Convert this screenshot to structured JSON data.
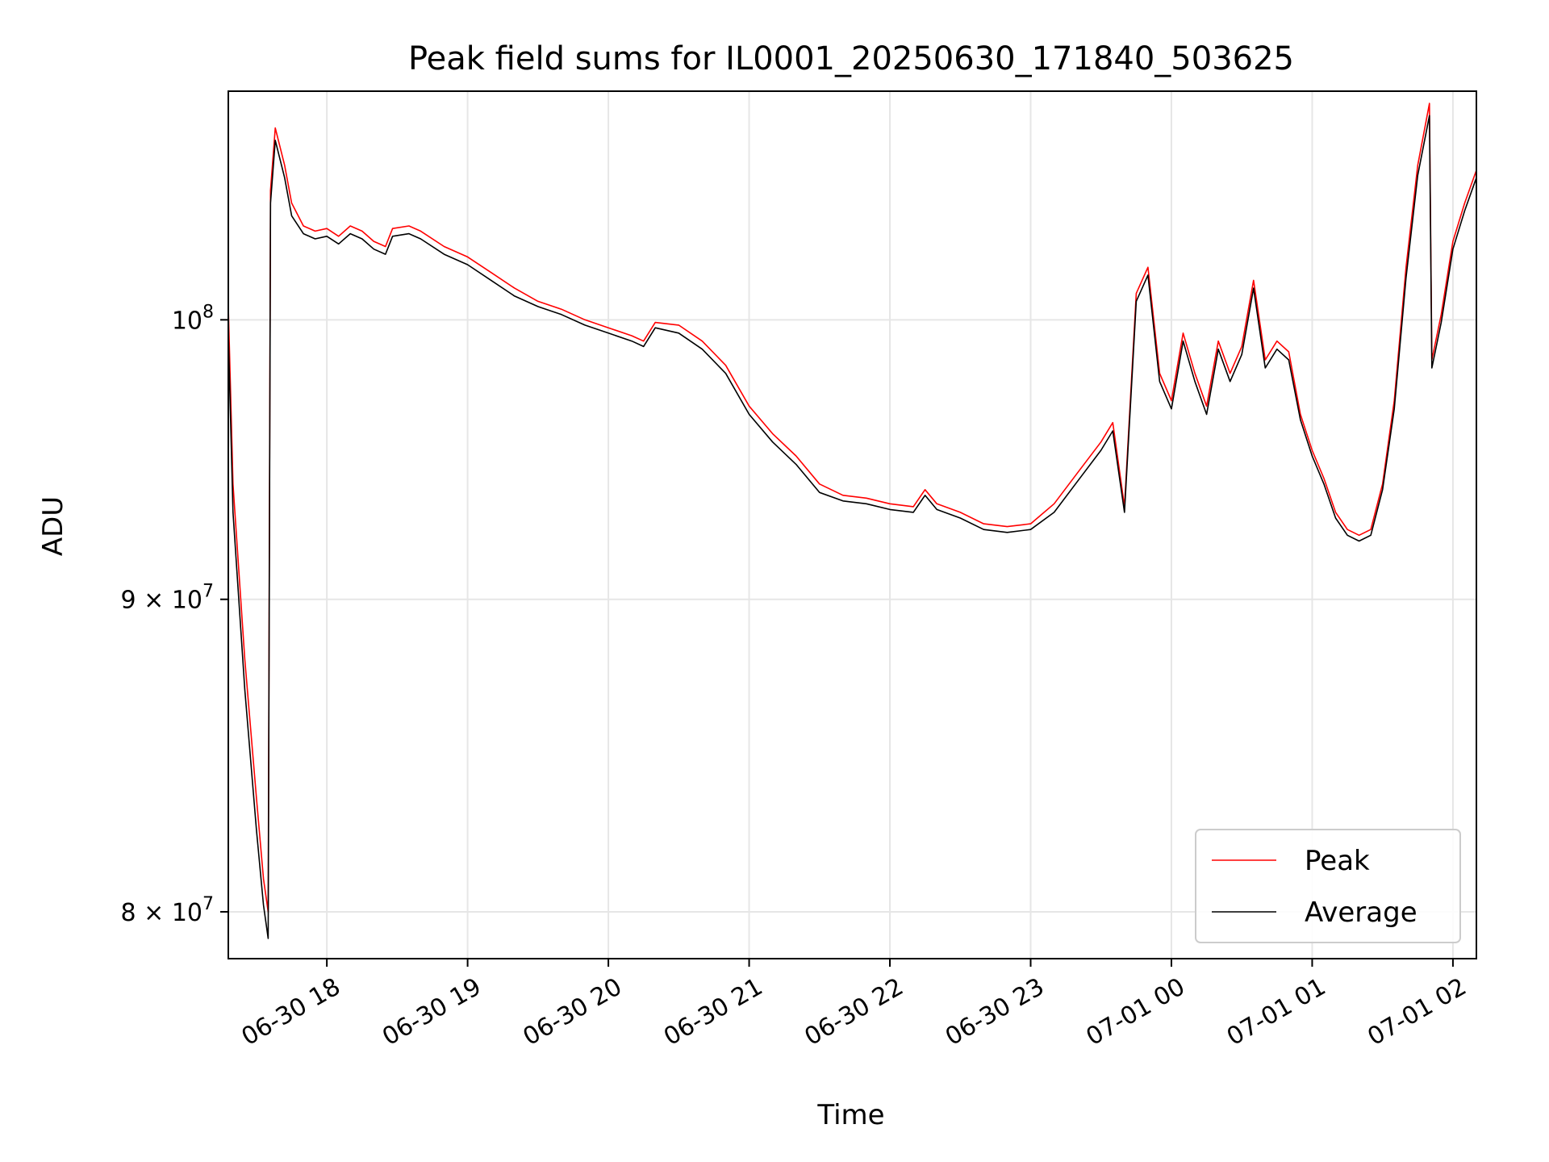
{
  "chart_data": {
    "type": "line",
    "title": "Peak field sums for IL0001_20250630_171840_503625",
    "xlabel": "Time",
    "ylabel": "ADU",
    "yscale": "log",
    "xlim": [
      "2025-06-30 17:18",
      "2025-07-01 02:10"
    ],
    "ylim": [
      78600000,
      109000000
    ],
    "grid": true,
    "legend": "lower right",
    "x_ticks": [
      "06-30 18",
      "06-30 19",
      "06-30 20",
      "06-30 21",
      "06-30 22",
      "06-30 23",
      "07-01 00",
      "07-01 01",
      "07-01 02"
    ],
    "y_ticks": [
      {
        "value": 80000000,
        "mant": "8",
        "exp": "7"
      },
      {
        "value": 90000000,
        "mant": "9",
        "exp": "7"
      },
      {
        "value": 100000000,
        "base": "10",
        "exp": "8"
      }
    ],
    "series": [
      {
        "name": "Peak",
        "color": "#ff0000",
        "points": [
          [
            "2025-06-30 17:18",
            100500000
          ],
          [
            "2025-06-30 17:20",
            94000000
          ],
          [
            "2025-06-30 17:25",
            88000000
          ],
          [
            "2025-06-30 17:30",
            83500000
          ],
          [
            "2025-06-30 17:33",
            81000000
          ],
          [
            "2025-06-30 17:35",
            80000000
          ],
          [
            "2025-06-30 17:36",
            105000000
          ],
          [
            "2025-06-30 17:38",
            107500000
          ],
          [
            "2025-06-30 17:42",
            106000000
          ],
          [
            "2025-06-30 17:45",
            104500000
          ],
          [
            "2025-06-30 17:50",
            103600000
          ],
          [
            "2025-06-30 17:55",
            103400000
          ],
          [
            "2025-06-30 18:00",
            103500000
          ],
          [
            "2025-06-30 18:05",
            103200000
          ],
          [
            "2025-06-30 18:10",
            103600000
          ],
          [
            "2025-06-30 18:15",
            103400000
          ],
          [
            "2025-06-30 18:20",
            103000000
          ],
          [
            "2025-06-30 18:25",
            102800000
          ],
          [
            "2025-06-30 18:28",
            103500000
          ],
          [
            "2025-06-30 18:35",
            103600000
          ],
          [
            "2025-06-30 18:40",
            103400000
          ],
          [
            "2025-06-30 18:50",
            102800000
          ],
          [
            "2025-06-30 19:00",
            102400000
          ],
          [
            "2025-06-30 19:10",
            101800000
          ],
          [
            "2025-06-30 19:20",
            101200000
          ],
          [
            "2025-06-30 19:30",
            100700000
          ],
          [
            "2025-06-30 19:40",
            100400000
          ],
          [
            "2025-06-30 19:50",
            100000000
          ],
          [
            "2025-06-30 20:00",
            99700000
          ],
          [
            "2025-06-30 20:10",
            99400000
          ],
          [
            "2025-06-30 20:15",
            99200000
          ],
          [
            "2025-06-30 20:20",
            99900000
          ],
          [
            "2025-06-30 20:30",
            99800000
          ],
          [
            "2025-06-30 20:40",
            99200000
          ],
          [
            "2025-06-30 20:50",
            98300000
          ],
          [
            "2025-06-30 21:00",
            96800000
          ],
          [
            "2025-06-30 21:10",
            95800000
          ],
          [
            "2025-06-30 21:20",
            95000000
          ],
          [
            "2025-06-30 21:30",
            94000000
          ],
          [
            "2025-06-30 21:40",
            93600000
          ],
          [
            "2025-06-30 21:50",
            93500000
          ],
          [
            "2025-06-30 22:00",
            93300000
          ],
          [
            "2025-06-30 22:10",
            93200000
          ],
          [
            "2025-06-30 22:15",
            93800000
          ],
          [
            "2025-06-30 22:20",
            93300000
          ],
          [
            "2025-06-30 22:30",
            93000000
          ],
          [
            "2025-06-30 22:40",
            92600000
          ],
          [
            "2025-06-30 22:50",
            92500000
          ],
          [
            "2025-06-30 23:00",
            92600000
          ],
          [
            "2025-06-30 23:10",
            93300000
          ],
          [
            "2025-06-30 23:20",
            94400000
          ],
          [
            "2025-06-30 23:30",
            95500000
          ],
          [
            "2025-06-30 23:35",
            96200000
          ],
          [
            "2025-06-30 23:40",
            93200000
          ],
          [
            "2025-06-30 23:45",
            101000000
          ],
          [
            "2025-06-30 23:50",
            102000000
          ],
          [
            "2025-06-30 23:55",
            98000000
          ],
          [
            "2025-07-01 00:00",
            97000000
          ],
          [
            "2025-07-01 00:05",
            99500000
          ],
          [
            "2025-07-01 00:10",
            98000000
          ],
          [
            "2025-07-01 00:15",
            96800000
          ],
          [
            "2025-07-01 00:20",
            99200000
          ],
          [
            "2025-07-01 00:25",
            98000000
          ],
          [
            "2025-07-01 00:30",
            99000000
          ],
          [
            "2025-07-01 00:35",
            101500000
          ],
          [
            "2025-07-01 00:40",
            98500000
          ],
          [
            "2025-07-01 00:45",
            99200000
          ],
          [
            "2025-07-01 00:50",
            98800000
          ],
          [
            "2025-07-01 00:55",
            96500000
          ],
          [
            "2025-07-01 01:00",
            95200000
          ],
          [
            "2025-07-01 01:05",
            94200000
          ],
          [
            "2025-07-01 01:10",
            93000000
          ],
          [
            "2025-07-01 01:15",
            92400000
          ],
          [
            "2025-07-01 01:20",
            92200000
          ],
          [
            "2025-07-01 01:25",
            92400000
          ],
          [
            "2025-07-01 01:30",
            94000000
          ],
          [
            "2025-07-01 01:35",
            97000000
          ],
          [
            "2025-07-01 01:40",
            102000000
          ],
          [
            "2025-07-01 01:45",
            106000000
          ],
          [
            "2025-07-01 01:50",
            108500000
          ],
          [
            "2025-07-01 01:51",
            98500000
          ],
          [
            "2025-07-01 01:55",
            100200000
          ],
          [
            "2025-07-01 02:00",
            103000000
          ],
          [
            "2025-07-01 02:05",
            104500000
          ],
          [
            "2025-07-01 02:10",
            105800000
          ]
        ]
      },
      {
        "name": "Average",
        "color": "#000000",
        "points": [
          [
            "2025-06-30 17:18",
            99500000
          ],
          [
            "2025-06-30 17:20",
            93000000
          ],
          [
            "2025-06-30 17:25",
            87000000
          ],
          [
            "2025-06-30 17:30",
            82500000
          ],
          [
            "2025-06-30 17:33",
            80200000
          ],
          [
            "2025-06-30 17:35",
            79200000
          ],
          [
            "2025-06-30 17:36",
            104500000
          ],
          [
            "2025-06-30 17:38",
            107000000
          ],
          [
            "2025-06-30 17:42",
            105500000
          ],
          [
            "2025-06-30 17:45",
            104000000
          ],
          [
            "2025-06-30 17:50",
            103300000
          ],
          [
            "2025-06-30 17:55",
            103100000
          ],
          [
            "2025-06-30 18:00",
            103200000
          ],
          [
            "2025-06-30 18:05",
            102900000
          ],
          [
            "2025-06-30 18:10",
            103300000
          ],
          [
            "2025-06-30 18:15",
            103100000
          ],
          [
            "2025-06-30 18:20",
            102700000
          ],
          [
            "2025-06-30 18:25",
            102500000
          ],
          [
            "2025-06-30 18:28",
            103200000
          ],
          [
            "2025-06-30 18:35",
            103300000
          ],
          [
            "2025-06-30 18:40",
            103100000
          ],
          [
            "2025-06-30 18:50",
            102500000
          ],
          [
            "2025-06-30 19:00",
            102100000
          ],
          [
            "2025-06-30 19:10",
            101500000
          ],
          [
            "2025-06-30 19:20",
            100900000
          ],
          [
            "2025-06-30 19:30",
            100500000
          ],
          [
            "2025-06-30 19:40",
            100200000
          ],
          [
            "2025-06-30 19:50",
            99800000
          ],
          [
            "2025-06-30 20:00",
            99500000
          ],
          [
            "2025-06-30 20:10",
            99200000
          ],
          [
            "2025-06-30 20:15",
            99000000
          ],
          [
            "2025-06-30 20:20",
            99700000
          ],
          [
            "2025-06-30 20:30",
            99500000
          ],
          [
            "2025-06-30 20:40",
            98900000
          ],
          [
            "2025-06-30 20:50",
            98000000
          ],
          [
            "2025-06-30 21:00",
            96500000
          ],
          [
            "2025-06-30 21:10",
            95500000
          ],
          [
            "2025-06-30 21:20",
            94700000
          ],
          [
            "2025-06-30 21:30",
            93700000
          ],
          [
            "2025-06-30 21:40",
            93400000
          ],
          [
            "2025-06-30 21:50",
            93300000
          ],
          [
            "2025-06-30 22:00",
            93100000
          ],
          [
            "2025-06-30 22:10",
            93000000
          ],
          [
            "2025-06-30 22:15",
            93600000
          ],
          [
            "2025-06-30 22:20",
            93100000
          ],
          [
            "2025-06-30 22:30",
            92800000
          ],
          [
            "2025-06-30 22:40",
            92400000
          ],
          [
            "2025-06-30 22:50",
            92300000
          ],
          [
            "2025-06-30 23:00",
            92400000
          ],
          [
            "2025-06-30 23:10",
            93000000
          ],
          [
            "2025-06-30 23:20",
            94100000
          ],
          [
            "2025-06-30 23:30",
            95200000
          ],
          [
            "2025-06-30 23:35",
            95900000
          ],
          [
            "2025-06-30 23:40",
            93000000
          ],
          [
            "2025-06-30 23:45",
            100700000
          ],
          [
            "2025-06-30 23:50",
            101700000
          ],
          [
            "2025-06-30 23:55",
            97700000
          ],
          [
            "2025-07-01 00:00",
            96700000
          ],
          [
            "2025-07-01 00:05",
            99200000
          ],
          [
            "2025-07-01 00:10",
            97700000
          ],
          [
            "2025-07-01 00:15",
            96500000
          ],
          [
            "2025-07-01 00:20",
            98900000
          ],
          [
            "2025-07-01 00:25",
            97700000
          ],
          [
            "2025-07-01 00:30",
            98700000
          ],
          [
            "2025-07-01 00:35",
            101200000
          ],
          [
            "2025-07-01 00:40",
            98200000
          ],
          [
            "2025-07-01 00:45",
            98900000
          ],
          [
            "2025-07-01 00:50",
            98500000
          ],
          [
            "2025-07-01 00:55",
            96300000
          ],
          [
            "2025-07-01 01:00",
            95000000
          ],
          [
            "2025-07-01 01:05",
            94000000
          ],
          [
            "2025-07-01 01:10",
            92800000
          ],
          [
            "2025-07-01 01:15",
            92200000
          ],
          [
            "2025-07-01 01:20",
            92000000
          ],
          [
            "2025-07-01 01:25",
            92200000
          ],
          [
            "2025-07-01 01:30",
            93800000
          ],
          [
            "2025-07-01 01:35",
            96700000
          ],
          [
            "2025-07-01 01:40",
            101600000
          ],
          [
            "2025-07-01 01:45",
            105600000
          ],
          [
            "2025-07-01 01:50",
            108000000
          ],
          [
            "2025-07-01 01:51",
            98200000
          ],
          [
            "2025-07-01 01:55",
            99900000
          ],
          [
            "2025-07-01 02:00",
            102700000
          ],
          [
            "2025-07-01 02:05",
            104200000
          ],
          [
            "2025-07-01 02:10",
            105500000
          ]
        ]
      }
    ]
  }
}
